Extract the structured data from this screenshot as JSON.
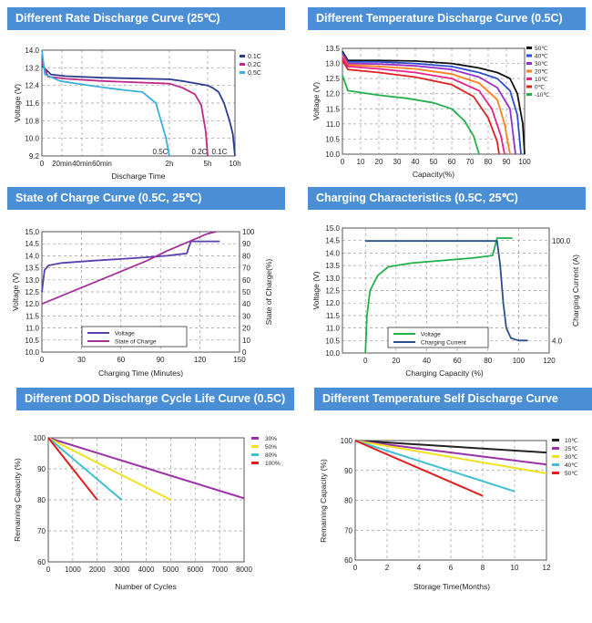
{
  "charts": [
    {
      "title": "Different Rate Discharge Curve (25℃)",
      "chart_data": {
        "type": "line",
        "xlabel": "Discharge Time",
        "ylabel": "Voltage (V)",
        "ylim": [
          9.2,
          14.0
        ],
        "yticks": [
          "14.0",
          "13.2",
          "12.4",
          "11.6",
          "10.8",
          "10.0",
          "9.2"
        ],
        "xticks": [
          {
            "v": 0,
            "label": "0"
          },
          {
            "v": 0.333,
            "label": "20min"
          },
          {
            "v": 0.667,
            "label": "40min"
          },
          {
            "v": 1,
            "label": "60min"
          },
          {
            "v": 2,
            "label": "2h"
          },
          {
            "v": 5,
            "label": "5h"
          },
          {
            "v": 10,
            "label": "10h"
          }
        ],
        "annotations": [
          "0.5C",
          "0.2C",
          "0.1C"
        ],
        "legend": "top-right",
        "series": [
          {
            "name": "0.1C",
            "color": "#2a3c8f",
            "points": [
              [
                0,
                13.3
              ],
              [
                0.15,
                12.9
              ],
              [
                0.4,
                12.82
              ],
              [
                1,
                12.75
              ],
              [
                2,
                12.68
              ],
              [
                3,
                12.6
              ],
              [
                4,
                12.5
              ],
              [
                5,
                12.4
              ],
              [
                6,
                12.28
              ],
              [
                7,
                12.1
              ],
              [
                8,
                11.6
              ],
              [
                9,
                10.8
              ],
              [
                9.6,
                10.2
              ],
              [
                10,
                9.2
              ]
            ]
          },
          {
            "name": "0.2C",
            "color": "#c0288a",
            "points": [
              [
                0,
                13.5
              ],
              [
                0.1,
                12.8
              ],
              [
                0.4,
                12.7
              ],
              [
                1,
                12.6
              ],
              [
                2,
                12.48
              ],
              [
                3,
                12.3
              ],
              [
                4,
                12.0
              ],
              [
                4.5,
                11.5
              ],
              [
                4.85,
                10.3
              ],
              [
                5,
                9.2
              ]
            ]
          },
          {
            "name": "0.5C",
            "color": "#3aaee0",
            "points": [
              [
                0,
                14.0
              ],
              [
                0.05,
                12.9
              ],
              [
                0.3,
                12.6
              ],
              [
                0.667,
                12.45
              ],
              [
                1,
                12.32
              ],
              [
                1.3,
                12.2
              ],
              [
                1.6,
                12.1
              ],
              [
                1.8,
                11.6
              ],
              [
                1.95,
                10.0
              ],
              [
                2,
                9.2
              ]
            ]
          }
        ]
      }
    },
    {
      "title": "Different Temperature Discharge Curve (0.5C)",
      "chart_data": {
        "type": "line",
        "xlabel": "Capacity(%)",
        "ylabel": "Voltage (V)",
        "xlim": [
          0,
          100
        ],
        "ylim": [
          10.0,
          13.5
        ],
        "xticks": [
          "0",
          "10",
          "20",
          "30",
          "40",
          "50",
          "60",
          "70",
          "80",
          "90",
          "100"
        ],
        "yticks": [
          "13.5",
          "13.0",
          "12.5",
          "12.0",
          "11.5",
          "11.0",
          "10.5",
          "10.0"
        ],
        "legend": "top-right",
        "series": [
          {
            "name": "50℃",
            "color": "#111111",
            "points": [
              [
                0,
                13.4
              ],
              [
                3,
                13.1
              ],
              [
                20,
                13.1
              ],
              [
                40,
                13.08
              ],
              [
                60,
                13.0
              ],
              [
                75,
                12.85
              ],
              [
                85,
                12.7
              ],
              [
                92,
                12.5
              ],
              [
                96,
                12.0
              ],
              [
                99,
                11.0
              ],
              [
                100,
                10.0
              ]
            ]
          },
          {
            "name": "40℃",
            "color": "#2a4fd0",
            "points": [
              [
                0,
                13.35
              ],
              [
                3,
                13.05
              ],
              [
                20,
                13.05
              ],
              [
                40,
                13.0
              ],
              [
                60,
                12.9
              ],
              [
                75,
                12.7
              ],
              [
                85,
                12.5
              ],
              [
                92,
                12.1
              ],
              [
                96,
                11.3
              ],
              [
                98,
                10.0
              ]
            ]
          },
          {
            "name": "30℃",
            "color": "#9b30c8",
            "points": [
              [
                0,
                13.3
              ],
              [
                3,
                13.0
              ],
              [
                20,
                12.98
              ],
              [
                40,
                12.92
              ],
              [
                60,
                12.8
              ],
              [
                75,
                12.55
              ],
              [
                85,
                12.2
              ],
              [
                92,
                11.5
              ],
              [
                95,
                10.0
              ]
            ]
          },
          {
            "name": "20℃",
            "color": "#ff7f1a",
            "points": [
              [
                0,
                13.25
              ],
              [
                3,
                12.95
              ],
              [
                20,
                12.9
              ],
              [
                40,
                12.82
              ],
              [
                60,
                12.65
              ],
              [
                75,
                12.35
              ],
              [
                85,
                11.8
              ],
              [
                89,
                11.0
              ],
              [
                92,
                10.0
              ]
            ]
          },
          {
            "name": "10℃",
            "color": "#e8228a",
            "points": [
              [
                0,
                13.2
              ],
              [
                3,
                12.9
              ],
              [
                20,
                12.82
              ],
              [
                40,
                12.7
              ],
              [
                60,
                12.5
              ],
              [
                75,
                12.1
              ],
              [
                82,
                11.5
              ],
              [
                87,
                10.6
              ],
              [
                89,
                10.0
              ]
            ]
          },
          {
            "name": "0℃",
            "color": "#e02020",
            "points": [
              [
                0,
                13.1
              ],
              [
                3,
                12.8
              ],
              [
                20,
                12.7
              ],
              [
                40,
                12.55
              ],
              [
                60,
                12.3
              ],
              [
                72,
                11.9
              ],
              [
                80,
                11.2
              ],
              [
                85,
                10.4
              ],
              [
                86,
                10.0
              ]
            ]
          },
          {
            "name": "-10℃",
            "color": "#22b04a",
            "points": [
              [
                0,
                12.6
              ],
              [
                3,
                12.1
              ],
              [
                20,
                11.95
              ],
              [
                35,
                11.85
              ],
              [
                50,
                11.7
              ],
              [
                60,
                11.5
              ],
              [
                67,
                11.1
              ],
              [
                72,
                10.6
              ],
              [
                75,
                10.0
              ]
            ]
          }
        ]
      }
    },
    {
      "title": "State of Charge Curve (0.5C, 25℃)",
      "chart_data": {
        "type": "line",
        "xlabel": "Charging Time (Minutes)",
        "ylabel": "Voltage (V)",
        "y2label": "State of Charge(%)",
        "xlim": [
          0,
          150
        ],
        "ylim": [
          10.0,
          15.0
        ],
        "y2lim": [
          0,
          100
        ],
        "xticks": [
          "0",
          "30",
          "60",
          "90",
          "120",
          "150"
        ],
        "yticks": [
          "15.0",
          "14.5",
          "14.0",
          "13.5",
          "13.0",
          "12.5",
          "12.0",
          "11.5",
          "11.0",
          "10.5",
          "10.0"
        ],
        "y2ticks": [
          "100",
          "90",
          "80",
          "70",
          "60",
          "50",
          "40",
          "30",
          "20",
          "10",
          "0"
        ],
        "legend": "bottom-left",
        "series": [
          {
            "name": "Voltage",
            "color": "#5a3fb0",
            "axis": "left",
            "points": [
              [
                0,
                12.5
              ],
              [
                2,
                13.4
              ],
              [
                5,
                13.6
              ],
              [
                15,
                13.7
              ],
              [
                40,
                13.8
              ],
              [
                70,
                13.9
              ],
              [
                95,
                14.0
              ],
              [
                110,
                14.1
              ],
              [
                113,
                14.6
              ],
              [
                135,
                14.6
              ]
            ]
          },
          {
            "name": "State of Charge",
            "color": "#a4309a",
            "axis": "right",
            "points": [
              [
                0,
                40
              ],
              [
                20,
                49
              ],
              [
                40,
                58
              ],
              [
                60,
                67
              ],
              [
                80,
                76
              ],
              [
                95,
                84
              ],
              [
                110,
                91
              ],
              [
                125,
                98
              ],
              [
                132,
                100
              ]
            ]
          }
        ]
      }
    },
    {
      "title": "Charging Characteristics (0.5C, 25℃)",
      "chart_data": {
        "type": "line",
        "xlabel": "Charging Capacity (%)",
        "ylabel": "Voltage (V)",
        "y2label": "Charging Current (A)",
        "xlim": [
          -15,
          120
        ],
        "ylim": [
          10.0,
          15.0
        ],
        "xticks": [
          "0",
          "20",
          "40",
          "60",
          "80",
          "100",
          "120"
        ],
        "yticks": [
          "15.0",
          "14.5",
          "14.0",
          "13.5",
          "13.0",
          "12.5",
          "12.0",
          "11.5",
          "11.0",
          "10.5",
          "10.0"
        ],
        "y2ticks": [
          "100.0",
          "4.0"
        ],
        "legend": "bottom-left",
        "series": [
          {
            "name": "Voltage",
            "color": "#22b04a",
            "points": [
              [
                0,
                10.0
              ],
              [
                1,
                11.5
              ],
              [
                3,
                12.5
              ],
              [
                8,
                13.1
              ],
              [
                15,
                13.45
              ],
              [
                30,
                13.6
              ],
              [
                50,
                13.7
              ],
              [
                70,
                13.8
              ],
              [
                83,
                13.9
              ],
              [
                86,
                14.6
              ],
              [
                96,
                14.6
              ]
            ]
          },
          {
            "name": "Charging Current",
            "color": "#2a4f8f",
            "points": [
              [
                0,
                14.48
              ],
              [
                40,
                14.48
              ],
              [
                86,
                14.48
              ],
              [
                88,
                13.5
              ],
              [
                90,
                12.0
              ],
              [
                92,
                11.0
              ],
              [
                95,
                10.6
              ],
              [
                100,
                10.5
              ],
              [
                106,
                10.5
              ]
            ]
          }
        ]
      }
    },
    {
      "title": "Different DOD Discharge Cycle Life Curve (0.5C)",
      "chart_data": {
        "type": "line",
        "xlabel": "Number of Cycles",
        "ylabel": "Remaining Capacity (%)",
        "xlim": [
          0,
          8000
        ],
        "ylim": [
          60,
          100
        ],
        "xticks": [
          "0",
          "1000",
          "2000",
          "3000",
          "4000",
          "5000",
          "6000",
          "7000",
          "8000"
        ],
        "yticks": [
          "100",
          "90",
          "80",
          "70",
          "60"
        ],
        "legend": "top-right",
        "series": [
          {
            "name": "30%",
            "color": "#9b30a8",
            "points": [
              [
                0,
                100
              ],
              [
                8000,
                80.5
              ]
            ]
          },
          {
            "name": "50%",
            "color": "#f0e020",
            "points": [
              [
                0,
                100
              ],
              [
                5000,
                80
              ]
            ]
          },
          {
            "name": "80%",
            "color": "#40c0d0",
            "points": [
              [
                0,
                100
              ],
              [
                3000,
                80
              ]
            ]
          },
          {
            "name": "100%",
            "color": "#e02020",
            "points": [
              [
                0,
                100
              ],
              [
                2000,
                80
              ]
            ]
          }
        ]
      }
    },
    {
      "title": "Different Temperature Self Discharge Curve",
      "chart_data": {
        "type": "line",
        "xlabel": "Storage Time(Months)",
        "ylabel": "Remaining Capacity (%)",
        "xlim": [
          0,
          12
        ],
        "ylim": [
          60,
          100
        ],
        "xticks": [
          "0",
          "2",
          "4",
          "6",
          "8",
          "10",
          "12"
        ],
        "yticks": [
          "100",
          "90",
          "80",
          "70",
          "60"
        ],
        "legend": "top-right",
        "series": [
          {
            "name": "10℃",
            "color": "#222222",
            "points": [
              [
                0,
                100
              ],
              [
                12,
                96
              ]
            ]
          },
          {
            "name": "25℃",
            "color": "#9b30a8",
            "points": [
              [
                0,
                100
              ],
              [
                12,
                92
              ]
            ]
          },
          {
            "name": "30℃",
            "color": "#f0e020",
            "points": [
              [
                0,
                100
              ],
              [
                12,
                89
              ]
            ]
          },
          {
            "name": "40℃",
            "color": "#40c0d0",
            "points": [
              [
                0,
                100
              ],
              [
                10,
                83
              ]
            ]
          },
          {
            "name": "50℃",
            "color": "#e02020",
            "points": [
              [
                0,
                100
              ],
              [
                8,
                81.5
              ]
            ]
          }
        ]
      }
    }
  ]
}
